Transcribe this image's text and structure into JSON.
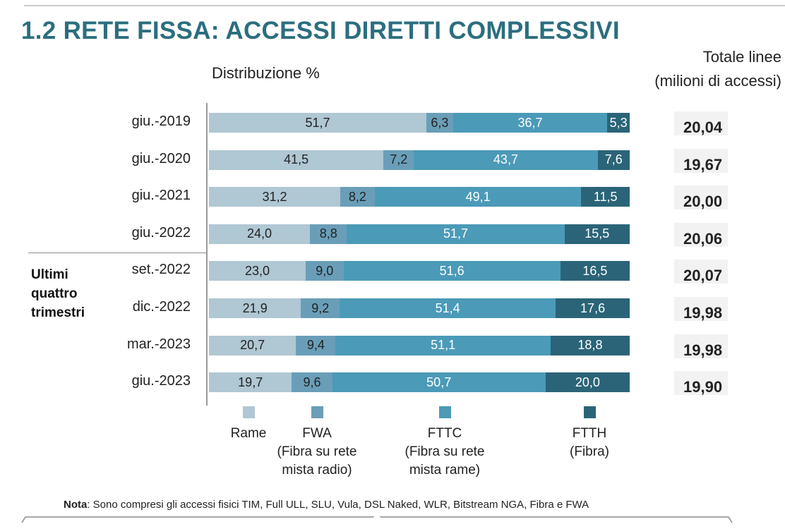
{
  "title": "1.2 RETE FISSA: ACCESSI DIRETTI COMPLESSIVI",
  "subtitle": "Distribuzione %",
  "totals_header": [
    "Totale linee",
    "(milioni di accessi)"
  ],
  "group_label": [
    "Ultimi",
    "quattro",
    "trimestri"
  ],
  "note": {
    "label": "Nota",
    "text": ": Sono compresi gli accessi fisici TIM, Full ULL, SLU, Vula, DSL Naked, WLR, Bitstream NGA, Fibra e FWA"
  },
  "colors": {
    "Rame": "#b0c7d4",
    "FWA": "#6a9eb8",
    "FTTC": "#4b9ab8",
    "FTTH": "#2b6478",
    "total_box": "#f2f2f2",
    "title": "#2b6e7f"
  },
  "legend": [
    {
      "key": "Rame",
      "lines": [
        "Rame"
      ]
    },
    {
      "key": "FWA",
      "lines": [
        "FWA",
        "(Fibra su rete",
        "mista radio)"
      ]
    },
    {
      "key": "FTTC",
      "lines": [
        "FTTC",
        "(Fibra su rete",
        "mista rame)"
      ]
    },
    {
      "key": "FTTH",
      "lines": [
        "FTTH",
        "(Fibra)"
      ]
    }
  ],
  "chart_data": {
    "type": "bar",
    "orientation": "horizontal",
    "stacked": true,
    "title": "1.2 RETE FISSA: ACCESSI DIRETTI COMPLESSIVI",
    "xlabel": "Distribuzione %",
    "ylabel": "",
    "xlim": [
      0,
      100
    ],
    "grid": false,
    "legend_position": "bottom",
    "categories": [
      "giu.-2019",
      "giu.-2020",
      "giu.-2021",
      "giu.-2022",
      "set.-2022",
      "dic.-2022",
      "mar.-2023",
      "giu.-2023"
    ],
    "category_labels": [
      "giu.-2019",
      "giu.-2020",
      "giu.-2021",
      "giu.-2022",
      "set.-2022",
      "dic.-2022",
      "mar.-2023",
      "giu.-2023"
    ],
    "series": [
      {
        "name": "Rame",
        "values": [
          51.7,
          41.5,
          31.2,
          24.0,
          23.0,
          21.9,
          20.7,
          19.7
        ],
        "labels": [
          "51,7",
          "41,5",
          "31,2",
          "24,0",
          "23,0",
          "21,9",
          "20,7",
          "19,7"
        ]
      },
      {
        "name": "FWA",
        "values": [
          6.3,
          7.2,
          8.2,
          8.8,
          9.0,
          9.2,
          9.4,
          9.6
        ],
        "labels": [
          "6,3",
          "7,2",
          "8,2",
          "8,8",
          "9,0",
          "9,2",
          "9,4",
          "9,6"
        ]
      },
      {
        "name": "FTTC",
        "values": [
          36.7,
          43.7,
          49.1,
          51.7,
          51.6,
          51.4,
          51.1,
          50.7
        ],
        "labels": [
          "36,7",
          "43,7",
          "49,1",
          "51,7",
          "51,6",
          "51,4",
          "51,1",
          "50,7"
        ]
      },
      {
        "name": "FTTH",
        "values": [
          5.3,
          7.6,
          11.5,
          15.5,
          16.5,
          17.6,
          18.8,
          20.0
        ],
        "labels": [
          "5,3",
          "7,6",
          "11,5",
          "15,5",
          "16,5",
          "17,6",
          "18,8",
          "20,0"
        ]
      }
    ],
    "totals": {
      "name": "Totale linee (milioni di accessi)",
      "values": [
        20.04,
        19.67,
        20.0,
        20.06,
        20.07,
        19.98,
        19.98,
        19.9
      ],
      "labels": [
        "20,04",
        "19,67",
        "20,00",
        "20,06",
        "20,07",
        "19,98",
        "19,98",
        "19,90"
      ]
    },
    "text_colors": {
      "Rame": "#222222",
      "FWA": "#222222",
      "FTTC": "#ffffff",
      "FTTH": "#ffffff"
    }
  }
}
